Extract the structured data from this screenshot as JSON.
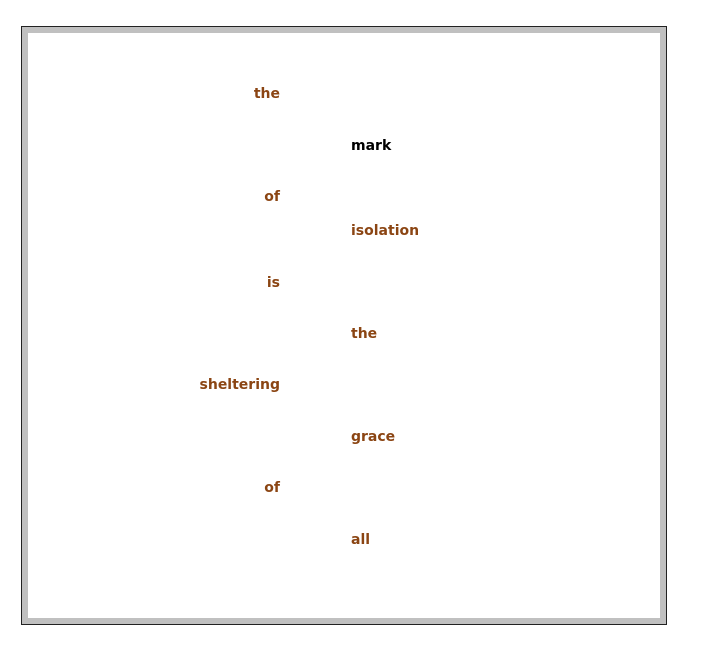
{
  "poem": {
    "words": [
      {
        "text": "the",
        "color": "#8b4513"
      },
      {
        "text": "mark",
        "color": "#000000"
      },
      {
        "text": "of",
        "color": "#8b4513"
      },
      {
        "text": "isolation",
        "color": "#8b4513"
      },
      {
        "text": "is",
        "color": "#8b4513"
      },
      {
        "text": "the",
        "color": "#8b4513"
      },
      {
        "text": "sheltering",
        "color": "#8b4513"
      },
      {
        "text": "grace",
        "color": "#8b4513"
      },
      {
        "text": "of",
        "color": "#8b4513"
      },
      {
        "text": "all",
        "color": "#8b4513"
      }
    ]
  },
  "colors": {
    "frame_border": "#c0c0c0",
    "text_accent": "#8b4513",
    "text_highlight": "#000000"
  }
}
